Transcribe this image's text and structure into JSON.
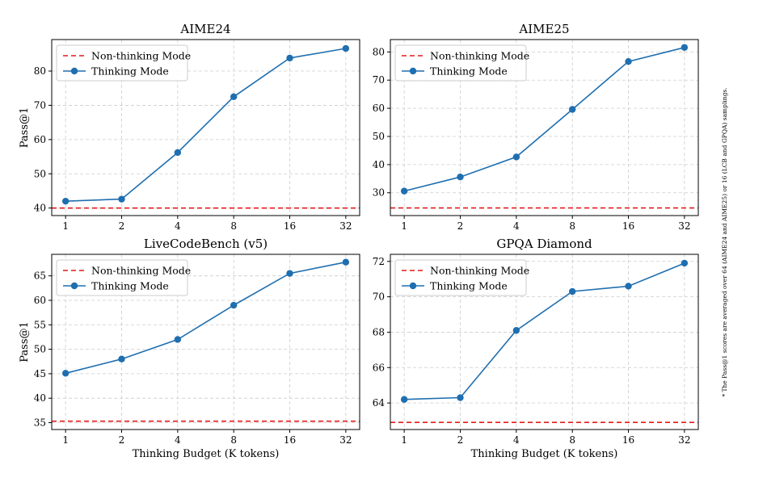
{
  "footnote": "* The Pass@1 scores are averaged over 64 (AIME24 and AIME25) or 16 (LCB and GPQA) samplings.",
  "colors": {
    "thinking": "#1f6fb0",
    "non_thinking": "#e41a1c",
    "grid": "#cccccc"
  },
  "chart_data": [
    {
      "type": "line",
      "title": "AIME24",
      "xlabel": "",
      "ylabel": "Pass@1",
      "categories": [
        "1",
        "2",
        "4",
        "8",
        "16",
        "32"
      ],
      "ylim": [
        37.8,
        89.2
      ],
      "yticks": [
        40,
        50,
        60,
        70,
        80
      ],
      "baseline": {
        "name": "Non-thinking Mode",
        "value": 40
      },
      "series": [
        {
          "name": "Thinking Mode",
          "values": [
            42.0,
            42.6,
            56.2,
            72.5,
            83.8,
            86.6
          ]
        }
      ]
    },
    {
      "type": "line",
      "title": "AIME25",
      "xlabel": "",
      "ylabel": "",
      "categories": [
        "1",
        "2",
        "4",
        "8",
        "16",
        "32"
      ],
      "ylim": [
        21.9,
        84.4
      ],
      "yticks": [
        30,
        40,
        50,
        60,
        70,
        80
      ],
      "baseline": {
        "name": "Non-thinking Mode",
        "value": 24.6
      },
      "series": [
        {
          "name": "Thinking Mode",
          "values": [
            30.6,
            35.6,
            42.7,
            59.6,
            76.6,
            81.6
          ]
        }
      ]
    },
    {
      "type": "line",
      "title": "LiveCodeBench (v5)",
      "xlabel": "Thinking Budget (K tokens)",
      "ylabel": "Pass@1",
      "categories": [
        "1",
        "2",
        "4",
        "8",
        "16",
        "32"
      ],
      "ylim": [
        33.6,
        69.4
      ],
      "yticks": [
        35,
        40,
        45,
        50,
        55,
        60,
        65
      ],
      "baseline": {
        "name": "Non-thinking Mode",
        "value": 35.3
      },
      "series": [
        {
          "name": "Thinking Mode",
          "values": [
            45.1,
            48.0,
            52.0,
            59.0,
            65.5,
            67.8
          ]
        }
      ]
    },
    {
      "type": "line",
      "title": "GPQA Diamond",
      "xlabel": "Thinking Budget (K tokens)",
      "ylabel": "",
      "categories": [
        "1",
        "2",
        "4",
        "8",
        "16",
        "32"
      ],
      "ylim": [
        62.5,
        72.4
      ],
      "yticks": [
        64,
        66,
        68,
        70,
        72
      ],
      "baseline": {
        "name": "Non-thinking Mode",
        "value": 62.9
      },
      "series": [
        {
          "name": "Thinking Mode",
          "values": [
            64.2,
            64.3,
            68.1,
            70.3,
            70.6,
            71.9
          ]
        }
      ]
    }
  ]
}
